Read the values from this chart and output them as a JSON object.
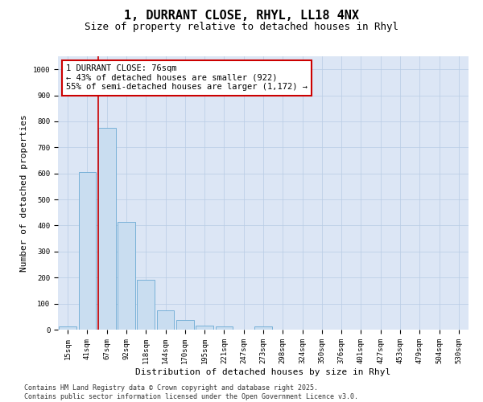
{
  "title_line1": "1, DURRANT CLOSE, RHYL, LL18 4NX",
  "title_line2": "Size of property relative to detached houses in Rhyl",
  "xlabel": "Distribution of detached houses by size in Rhyl",
  "ylabel": "Number of detached properties",
  "categories": [
    "15sqm",
    "41sqm",
    "67sqm",
    "92sqm",
    "118sqm",
    "144sqm",
    "170sqm",
    "195sqm",
    "221sqm",
    "247sqm",
    "273sqm",
    "298sqm",
    "324sqm",
    "350sqm",
    "376sqm",
    "401sqm",
    "427sqm",
    "453sqm",
    "479sqm",
    "504sqm",
    "530sqm"
  ],
  "values": [
    13,
    605,
    775,
    413,
    190,
    75,
    37,
    16,
    12,
    0,
    13,
    0,
    0,
    0,
    0,
    0,
    0,
    0,
    0,
    0,
    0
  ],
  "bar_color": "#c9ddf0",
  "bar_edge_color": "#6aaad4",
  "plot_bg_color": "#dce6f5",
  "fig_bg_color": "#ffffff",
  "grid_color": "#b8cce4",
  "vline_color": "#cc0000",
  "vline_x_idx": 1.55,
  "annotation_text": "1 DURRANT CLOSE: 76sqm\n← 43% of detached houses are smaller (922)\n55% of semi-detached houses are larger (1,172) →",
  "annotation_box_color": "#cc0000",
  "ylim": [
    0,
    1050
  ],
  "yticks": [
    0,
    100,
    200,
    300,
    400,
    500,
    600,
    700,
    800,
    900,
    1000
  ],
  "footer_line1": "Contains HM Land Registry data © Crown copyright and database right 2025.",
  "footer_line2": "Contains public sector information licensed under the Open Government Licence v3.0.",
  "title_fontsize": 11,
  "subtitle_fontsize": 9,
  "axis_label_fontsize": 8,
  "tick_fontsize": 6.5,
  "annotation_fontsize": 7.5,
  "footer_fontsize": 6
}
